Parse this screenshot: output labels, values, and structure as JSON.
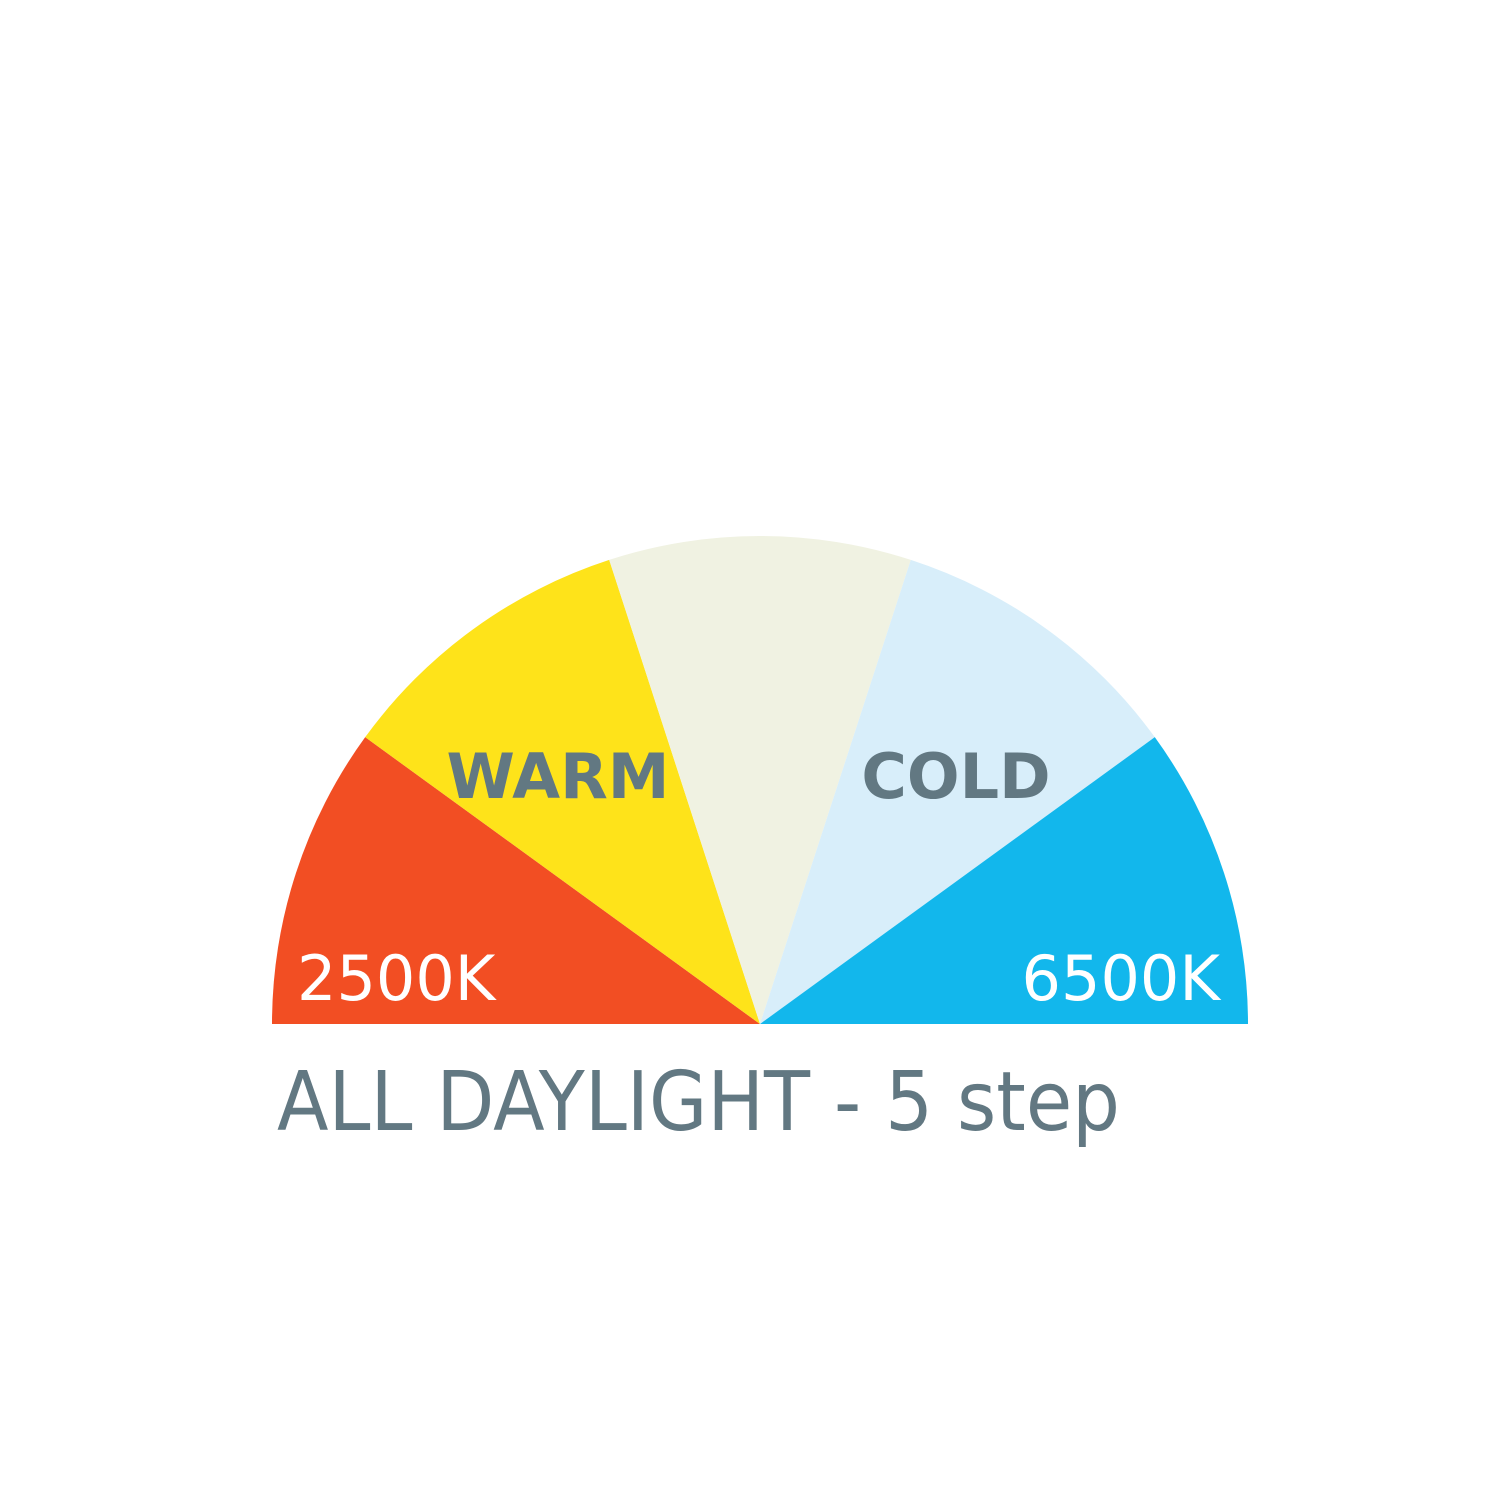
{
  "diagram": {
    "type": "semicircle-scale",
    "segments": [
      {
        "color": "#F24E23"
      },
      {
        "color": "#FEE31A"
      },
      {
        "color": "#F0F2E2"
      },
      {
        "color": "#D8EEFA"
      },
      {
        "color": "#12B7EC"
      }
    ],
    "labels": {
      "min": "2500K",
      "max": "6500K",
      "warm": "WARM",
      "cold": "COLD"
    },
    "title": "ALL DAYLIGHT - 5 step",
    "colors": {
      "text_dark": "#627882",
      "text_light": "#ffffff"
    }
  }
}
